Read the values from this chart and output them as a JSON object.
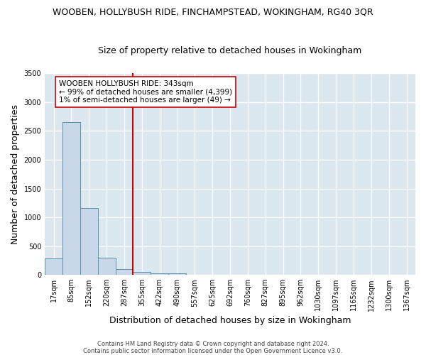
{
  "title": "WOOBEN, HOLLYBUSH RIDE, FINCHAMPSTEAD, WOKINGHAM, RG40 3QR",
  "subtitle": "Size of property relative to detached houses in Wokingham",
  "xlabel": "Distribution of detached houses by size in Wokingham",
  "ylabel": "Number of detached properties",
  "bar_labels": [
    "17sqm",
    "85sqm",
    "152sqm",
    "220sqm",
    "287sqm",
    "355sqm",
    "422sqm",
    "490sqm",
    "557sqm",
    "625sqm",
    "692sqm",
    "760sqm",
    "827sqm",
    "895sqm",
    "962sqm",
    "1030sqm",
    "1097sqm",
    "1165sqm",
    "1232sqm",
    "1300sqm",
    "1367sqm"
  ],
  "bar_values": [
    280,
    2650,
    1160,
    295,
    105,
    55,
    30,
    30,
    0,
    0,
    0,
    0,
    0,
    0,
    0,
    0,
    0,
    0,
    0,
    0,
    0
  ],
  "bar_color": "#c8d8e8",
  "bar_edge_color": "#5a8faa",
  "ylim": [
    0,
    3500
  ],
  "vline_color": "#cc0000",
  "vline_pos": 4.5,
  "annotation_title": "WOOBEN HOLLYBUSH RIDE: 343sqm",
  "annotation_line1": "← 99% of detached houses are smaller (4,399)",
  "annotation_line2": "1% of semi-detached houses are larger (49) →",
  "annotation_box_color": "#ffffff",
  "annotation_box_edge": "#cc0000",
  "background_color": "#dce8f0",
  "fig_background": "#ffffff",
  "footer1": "Contains HM Land Registry data © Crown copyright and database right 2024.",
  "footer2": "Contains public sector information licensed under the Open Government Licence v3.0.",
  "title_fontsize": 9,
  "subtitle_fontsize": 9,
  "tick_fontsize": 7,
  "ylabel_fontsize": 9,
  "xlabel_fontsize": 9,
  "footer_fontsize": 6,
  "annotation_fontsize": 7.5
}
